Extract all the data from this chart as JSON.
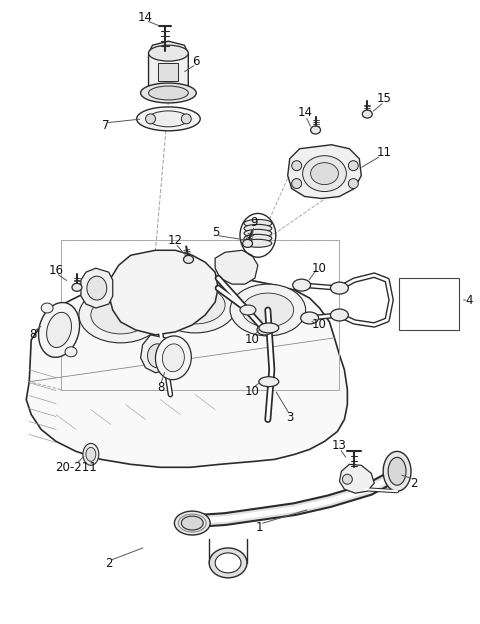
{
  "bg_color": "#ffffff",
  "fig_width": 4.8,
  "fig_height": 6.24,
  "dpi": 100,
  "line_color": "#2a2a2a",
  "dash_color": "#aaaaaa",
  "label_color": "#111111",
  "label_fs": 8.5
}
